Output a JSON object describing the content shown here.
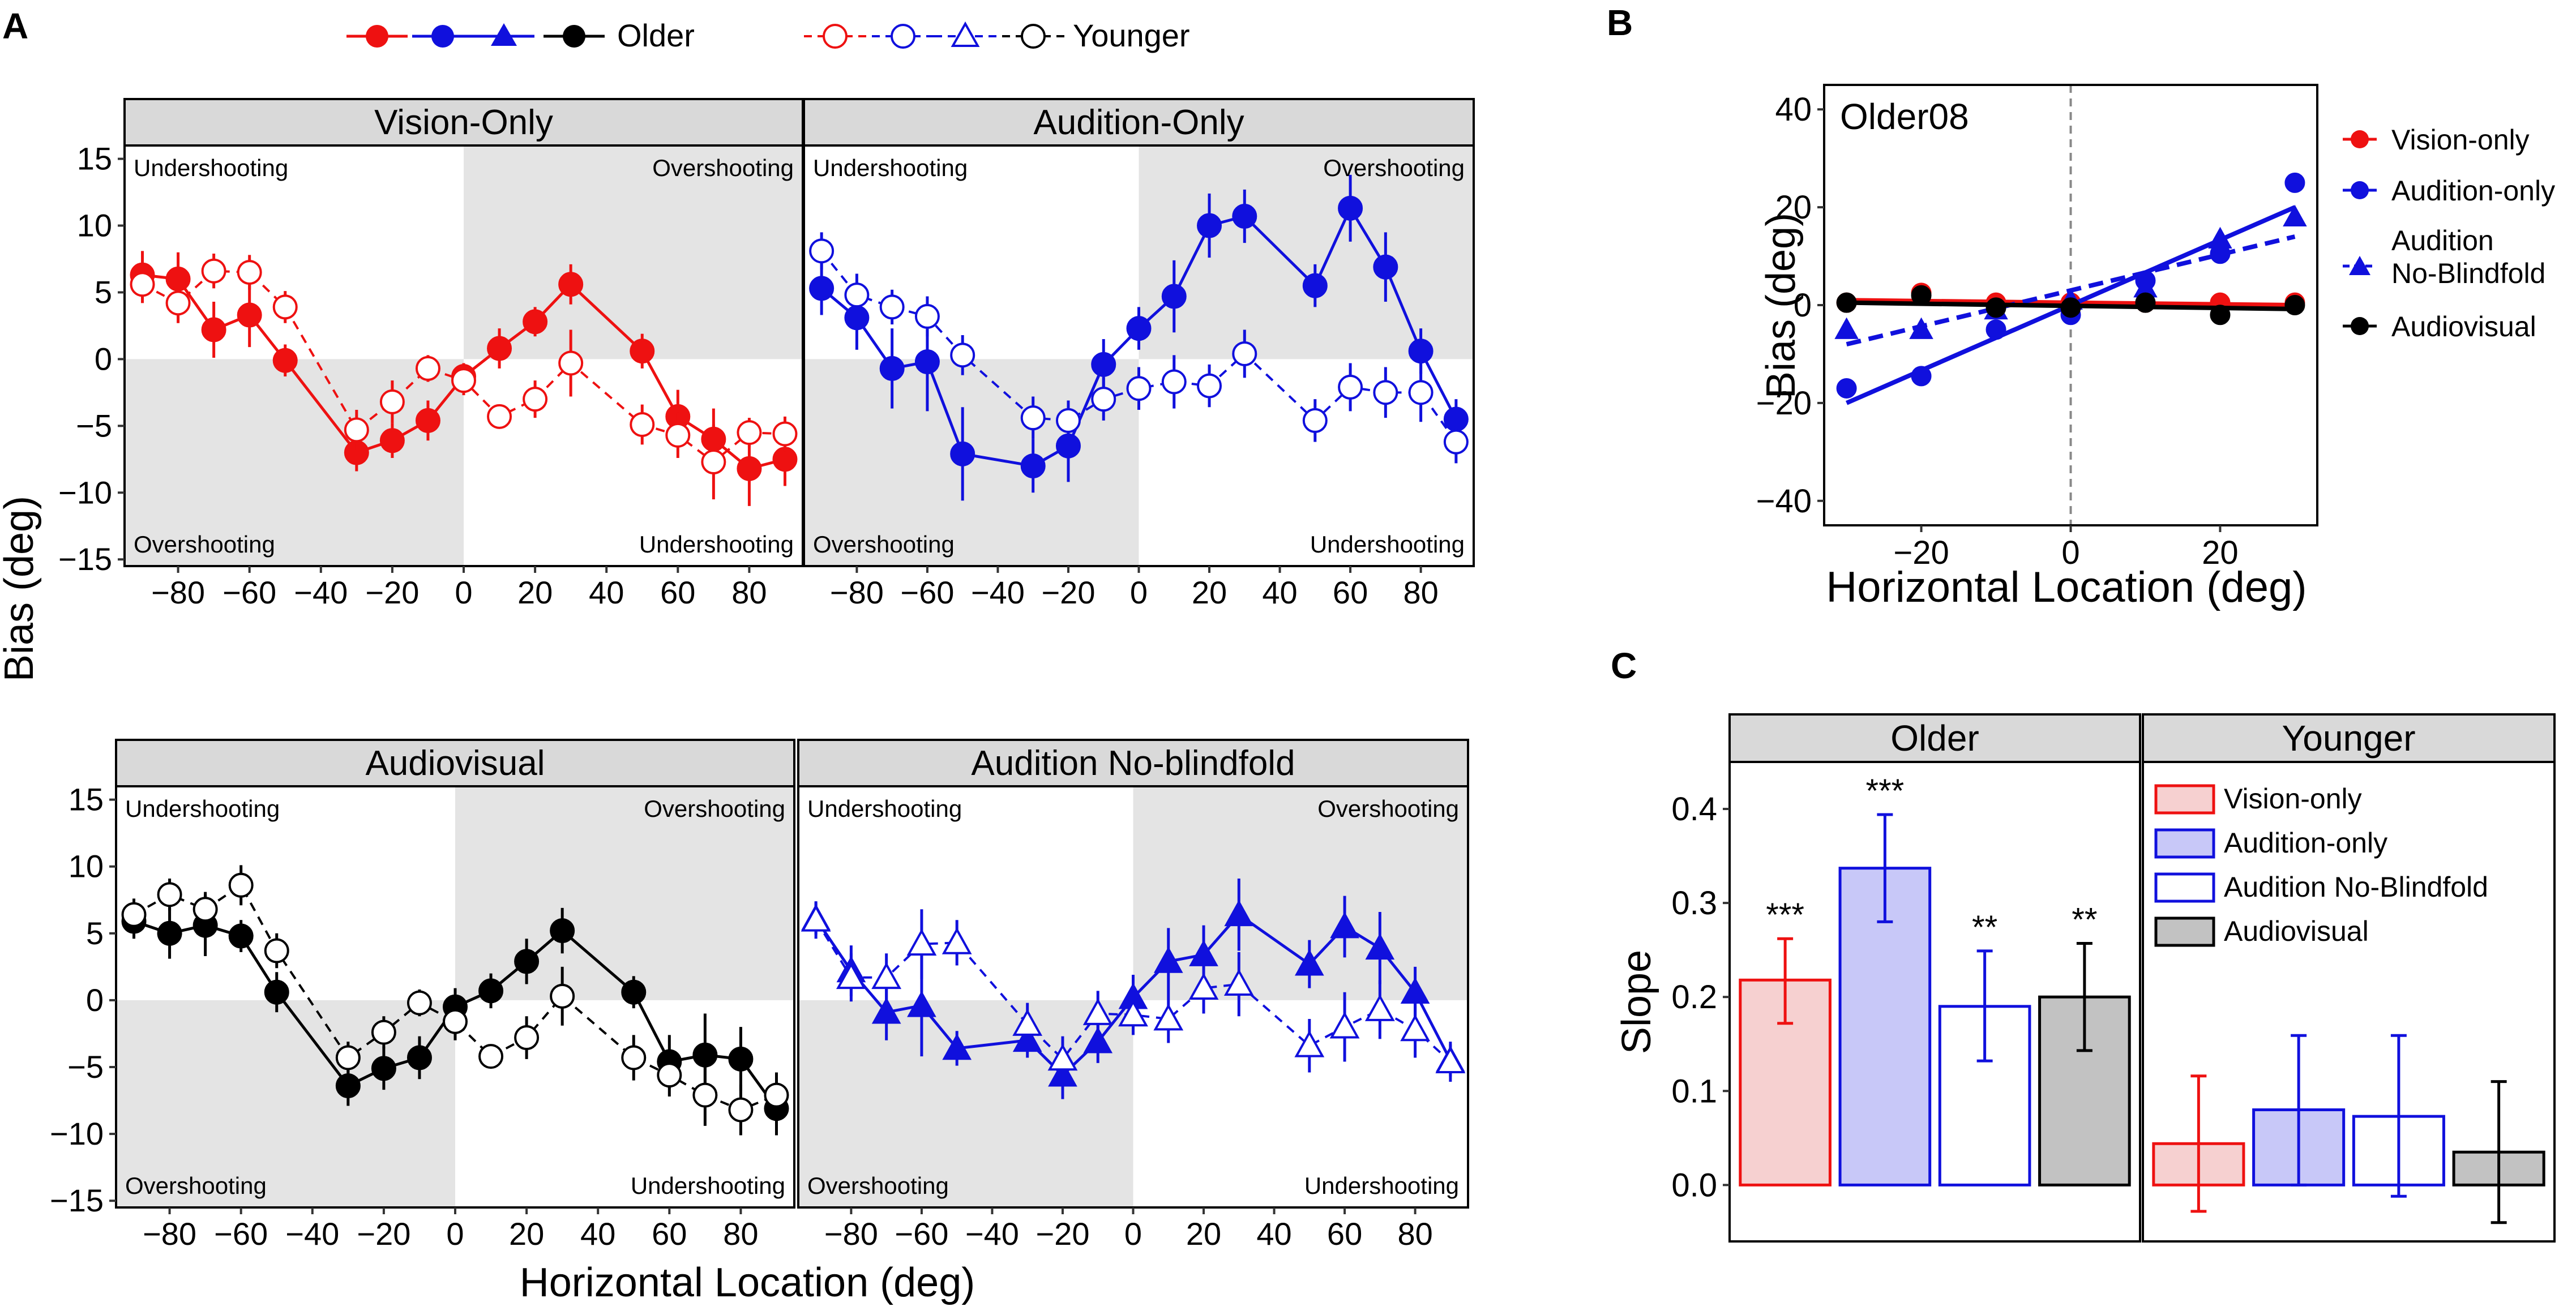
{
  "figure": {
    "panel_labels": {
      "a": "A",
      "b": "B",
      "c": "C"
    },
    "legend_a": {
      "older": "Older",
      "younger": "Younger"
    },
    "quadrant_labels": {
      "under": "Undershooting",
      "over": "Overshooting"
    },
    "axis": {
      "x_label": "Horizontal Location (deg)",
      "y_label": "Bias (deg)"
    }
  },
  "colors": {
    "vision": "#ee1111",
    "audition": "#1010dd",
    "av": "#000000",
    "shade": "#e4e4e4",
    "strip": "#d9d9d9"
  },
  "chart_data": [
    {
      "id": "A",
      "type": "line",
      "subplots": [
        {
          "title": "Vision-Only",
          "color": "#ee1111",
          "marker": "circle",
          "xlim": [
            -95,
            95
          ],
          "ylim": [
            -15.5,
            16
          ],
          "xticks": [
            -80,
            -60,
            -40,
            -20,
            0,
            20,
            40,
            60,
            80
          ],
          "yticks": [
            -15,
            -10,
            -5,
            0,
            5,
            10,
            15
          ],
          "series": [
            {
              "name": "Older",
              "filled": true,
              "dashed": false,
              "x": [
                -90,
                -80,
                -70,
                -60,
                -50,
                -30,
                -20,
                -10,
                0,
                10,
                20,
                30,
                50,
                60,
                70,
                80,
                90
              ],
              "y": [
                6.3,
                6.0,
                2.2,
                3.3,
                -0.1,
                -7.0,
                -6.1,
                -4.6,
                -1.3,
                0.8,
                2.8,
                5.6,
                0.6,
                -4.3,
                -6.0,
                -8.2,
                -7.5
              ],
              "err": [
                1.8,
                2.0,
                2.1,
                2.4,
                1.2,
                1.4,
                1.3,
                1.5,
                1.0,
                1.5,
                1.1,
                1.5,
                1.3,
                2.0,
                2.3,
                2.8,
                2.0
              ]
            },
            {
              "name": "Younger",
              "filled": false,
              "dashed": true,
              "x": [
                -90,
                -80,
                -70,
                -60,
                -50,
                -30,
                -20,
                -10,
                0,
                10,
                20,
                30,
                50,
                60,
                70,
                80,
                90
              ],
              "y": [
                5.6,
                4.2,
                6.6,
                6.5,
                3.9,
                -5.3,
                -3.2,
                -0.7,
                -1.6,
                -4.3,
                -3.0,
                -0.3,
                -4.9,
                -5.7,
                -7.7,
                -5.5,
                -5.6
              ],
              "err": [
                1.4,
                1.5,
                1.3,
                1.3,
                1.2,
                1.5,
                1.6,
                1.0,
                1.1,
                0.8,
                1.4,
                2.5,
                1.5,
                1.7,
                2.8,
                1.1,
                1.3
              ]
            }
          ]
        },
        {
          "title": "Audition-Only",
          "color": "#1010dd",
          "marker": "circle",
          "xlim": [
            -95,
            95
          ],
          "ylim": [
            -15.5,
            16
          ],
          "xticks": [
            -80,
            -60,
            -40,
            -20,
            0,
            20,
            40,
            60,
            80
          ],
          "yticks": [
            -15,
            -10,
            -5,
            0,
            5,
            10,
            15
          ],
          "series": [
            {
              "name": "Older",
              "filled": true,
              "dashed": false,
              "x": [
                -90,
                -80,
                -70,
                -60,
                -50,
                -30,
                -20,
                -10,
                0,
                10,
                20,
                30,
                50,
                60,
                70,
                80,
                90
              ],
              "y": [
                5.3,
                3.1,
                -0.7,
                -0.2,
                -7.1,
                -8.0,
                -6.5,
                -0.4,
                2.3,
                4.7,
                10.0,
                10.7,
                5.5,
                11.3,
                6.9,
                0.6,
                -4.5
              ],
              "err": [
                2.0,
                2.4,
                3.0,
                3.7,
                3.5,
                2.0,
                2.7,
                1.9,
                1.6,
                2.7,
                2.4,
                2.0,
                1.6,
                2.5,
                2.6,
                1.7,
                1.5
              ]
            },
            {
              "name": "Younger",
              "filled": false,
              "dashed": true,
              "x": [
                -90,
                -80,
                -70,
                -60,
                -50,
                -30,
                -20,
                -10,
                0,
                10,
                20,
                30,
                50,
                60,
                70,
                80,
                90
              ],
              "y": [
                8.1,
                4.8,
                3.9,
                3.2,
                0.3,
                -4.4,
                -4.6,
                -3.0,
                -2.2,
                -1.7,
                -2.0,
                0.4,
                -4.6,
                -2.1,
                -2.5,
                -2.5,
                -6.2
              ],
              "err": [
                1.4,
                1.6,
                1.3,
                1.5,
                1.5,
                1.6,
                1.5,
                1.6,
                1.6,
                2.0,
                1.6,
                1.8,
                1.6,
                1.8,
                1.9,
                2.2,
                1.6
              ]
            }
          ]
        },
        {
          "title": "Audiovisual",
          "color": "#000000",
          "marker": "circle",
          "xlim": [
            -95,
            95
          ],
          "ylim": [
            -15.5,
            16
          ],
          "xticks": [
            -80,
            -60,
            -40,
            -20,
            0,
            20,
            40,
            60,
            80
          ],
          "yticks": [
            -15,
            -10,
            -5,
            0,
            5,
            10,
            15
          ],
          "series": [
            {
              "name": "Older",
              "filled": true,
              "dashed": false,
              "x": [
                -90,
                -80,
                -70,
                -60,
                -50,
                -30,
                -20,
                -10,
                0,
                10,
                20,
                30,
                50,
                60,
                70,
                80,
                90
              ],
              "y": [
                5.9,
                5.0,
                5.6,
                4.8,
                0.6,
                -6.4,
                -5.1,
                -4.3,
                -0.5,
                0.7,
                2.9,
                5.2,
                0.6,
                -4.6,
                -4.1,
                -4.4,
                -8.1
              ],
              "err": [
                1.3,
                1.9,
                2.3,
                1.2,
                1.5,
                1.5,
                1.6,
                1.6,
                1.4,
                1.3,
                1.7,
                1.7,
                1.2,
                2.0,
                3.1,
                2.4,
                2.0
              ]
            },
            {
              "name": "Younger",
              "filled": false,
              "dashed": true,
              "x": [
                -90,
                -80,
                -70,
                -60,
                -50,
                -30,
                -20,
                -10,
                0,
                10,
                20,
                30,
                50,
                60,
                70,
                80,
                90
              ],
              "y": [
                6.4,
                7.9,
                6.8,
                8.6,
                3.7,
                -4.3,
                -2.4,
                -0.2,
                -1.6,
                -4.2,
                -2.8,
                0.3,
                -4.3,
                -5.6,
                -7.1,
                -8.2,
                -7.1
              ],
              "err": [
                1.2,
                1.2,
                1.3,
                1.5,
                1.3,
                1.2,
                1.2,
                1.0,
                1.4,
                0.9,
                1.6,
                2.2,
                1.7,
                1.6,
                2.3,
                1.9,
                1.7
              ]
            }
          ]
        },
        {
          "title": "Audition No-blindfold",
          "color": "#1010dd",
          "marker": "triangle",
          "xlim": [
            -95,
            95
          ],
          "ylim": [
            -15.5,
            16
          ],
          "xticks": [
            -80,
            -60,
            -40,
            -20,
            0,
            20,
            40,
            60,
            80
          ],
          "yticks": [
            -15,
            -10,
            -5,
            0,
            5,
            10,
            15
          ],
          "series": [
            {
              "name": "Older",
              "filled": true,
              "dashed": false,
              "x": [
                -90,
                -80,
                -70,
                -60,
                -50,
                -30,
                -20,
                -10,
                0,
                10,
                20,
                30,
                50,
                60,
                70,
                80,
                90
              ],
              "y": [
                6.1,
                2.2,
                -0.9,
                -0.4,
                -3.6,
                -3.0,
                -5.6,
                -3.1,
                0.2,
                2.9,
                3.4,
                6.4,
                2.7,
                5.5,
                3.9,
                0.6,
                -4.5
              ],
              "err": [
                1.2,
                1.9,
                2.1,
                3.8,
                1.3,
                1.3,
                1.8,
                1.6,
                1.7,
                2.5,
                2.2,
                2.7,
                1.8,
                2.3,
                2.7,
                1.9,
                1.2
              ]
            },
            {
              "name": "Younger",
              "filled": false,
              "dashed": true,
              "x": [
                -90,
                -80,
                -70,
                -60,
                -50,
                -30,
                -20,
                -10,
                0,
                10,
                20,
                30,
                50,
                60,
                70,
                80,
                90
              ],
              "y": [
                6.0,
                1.7,
                1.7,
                4.2,
                4.3,
                -1.8,
                -4.4,
                -1.0,
                -1.1,
                -1.4,
                0.9,
                1.2,
                -3.4,
                -2.0,
                -0.7,
                -2.2,
                -4.6
              ],
              "err": [
                1.4,
                1.8,
                1.8,
                2.6,
                1.7,
                1.6,
                1.7,
                1.7,
                1.5,
                1.8,
                1.9,
                2.4,
                2.0,
                2.6,
                2.2,
                2.1,
                1.5
              ]
            }
          ]
        }
      ]
    },
    {
      "id": "B",
      "type": "scatter",
      "title": "Older08",
      "xlim": [
        -33,
        33
      ],
      "ylim": [
        -45,
        45
      ],
      "xticks": [
        -20,
        0,
        20
      ],
      "yticks": [
        -40,
        -20,
        0,
        20,
        40
      ],
      "legend": [
        "Vision-only",
        "Audition-only",
        "Audition No-Blindfold",
        "Audiovisual"
      ],
      "legend_lines": {
        "nb_line1": "Audition",
        "nb_line2": "No-Blindfold"
      },
      "series": [
        {
          "name": "Vision-only",
          "color": "#ee1111",
          "marker": "circle",
          "dashed": false,
          "x": [
            -30,
            -20,
            -10,
            0,
            10,
            20,
            30
          ],
          "y": [
            0.5,
            2.5,
            0.5,
            0.5,
            0.5,
            0.5,
            0.5
          ],
          "fit": [
            [
              -30,
              1.0
            ],
            [
              30,
              0.0
            ]
          ]
        },
        {
          "name": "Audition-only",
          "color": "#1010dd",
          "marker": "circle",
          "dashed": false,
          "x": [
            -30,
            -20,
            -10,
            0,
            10,
            20,
            30
          ],
          "y": [
            -17,
            -14.5,
            -5,
            -2,
            5,
            10.5,
            25
          ],
          "fit": [
            [
              -30,
              -20
            ],
            [
              30,
              20
            ]
          ]
        },
        {
          "name": "Audition No-Blindfold",
          "color": "#1010dd",
          "marker": "triangle",
          "dashed": true,
          "x": [
            -30,
            -20,
            -10,
            0,
            10,
            20,
            30
          ],
          "y": [
            -5,
            -5,
            -1,
            1,
            3.5,
            13.5,
            18
          ],
          "fit": [
            [
              -30,
              -8
            ],
            [
              30,
              14
            ]
          ]
        },
        {
          "name": "Audiovisual",
          "color": "#000000",
          "marker": "circle",
          "dashed": false,
          "x": [
            -30,
            -20,
            -10,
            0,
            10,
            20,
            30
          ],
          "y": [
            0.5,
            2.0,
            -0.5,
            -0.5,
            0.5,
            -2.0,
            0.0
          ],
          "fit": [
            [
              -30,
              0.5
            ],
            [
              30,
              -0.8
            ]
          ]
        }
      ]
    },
    {
      "id": "C",
      "type": "bar",
      "ylabel": "Slope",
      "ylim": [
        -0.06,
        0.45
      ],
      "yticks": [
        0.0,
        0.1,
        0.2,
        0.3,
        0.4
      ],
      "ytick_labels": [
        "0.0",
        "0.1",
        "0.2",
        "0.3",
        "0.4"
      ],
      "categories": [
        "Vision-only",
        "Audition-only",
        "Audition No-Blindfold",
        "Audiovisual"
      ],
      "legend": [
        "Vision-only",
        "Audition-only",
        "Audition No-Blindfold",
        "Audiovisual"
      ],
      "bar_styles": [
        {
          "fill": "#f6d0d0",
          "stroke": "#ee1111"
        },
        {
          "fill": "#c8c8f8",
          "stroke": "#1010dd"
        },
        {
          "fill": "#ffffff",
          "stroke": "#1010dd"
        },
        {
          "fill": "#c2c2c2",
          "stroke": "#000000"
        }
      ],
      "groups": [
        {
          "name": "Older",
          "values": [
            0.218,
            0.337,
            0.19,
            0.2
          ],
          "err_low": [
            0.172,
            0.28,
            0.132,
            0.143
          ],
          "err_high": [
            0.262,
            0.394,
            0.249,
            0.257
          ],
          "annotations": [
            "***",
            "***",
            "**",
            "**"
          ]
        },
        {
          "name": "Younger",
          "values": [
            0.044,
            0.08,
            0.073,
            0.035
          ],
          "err_low": [
            -0.028,
            0.0,
            -0.012,
            -0.04
          ],
          "err_high": [
            0.116,
            0.159,
            0.159,
            0.11
          ],
          "annotations": [
            "",
            "",
            "",
            ""
          ]
        }
      ]
    }
  ]
}
